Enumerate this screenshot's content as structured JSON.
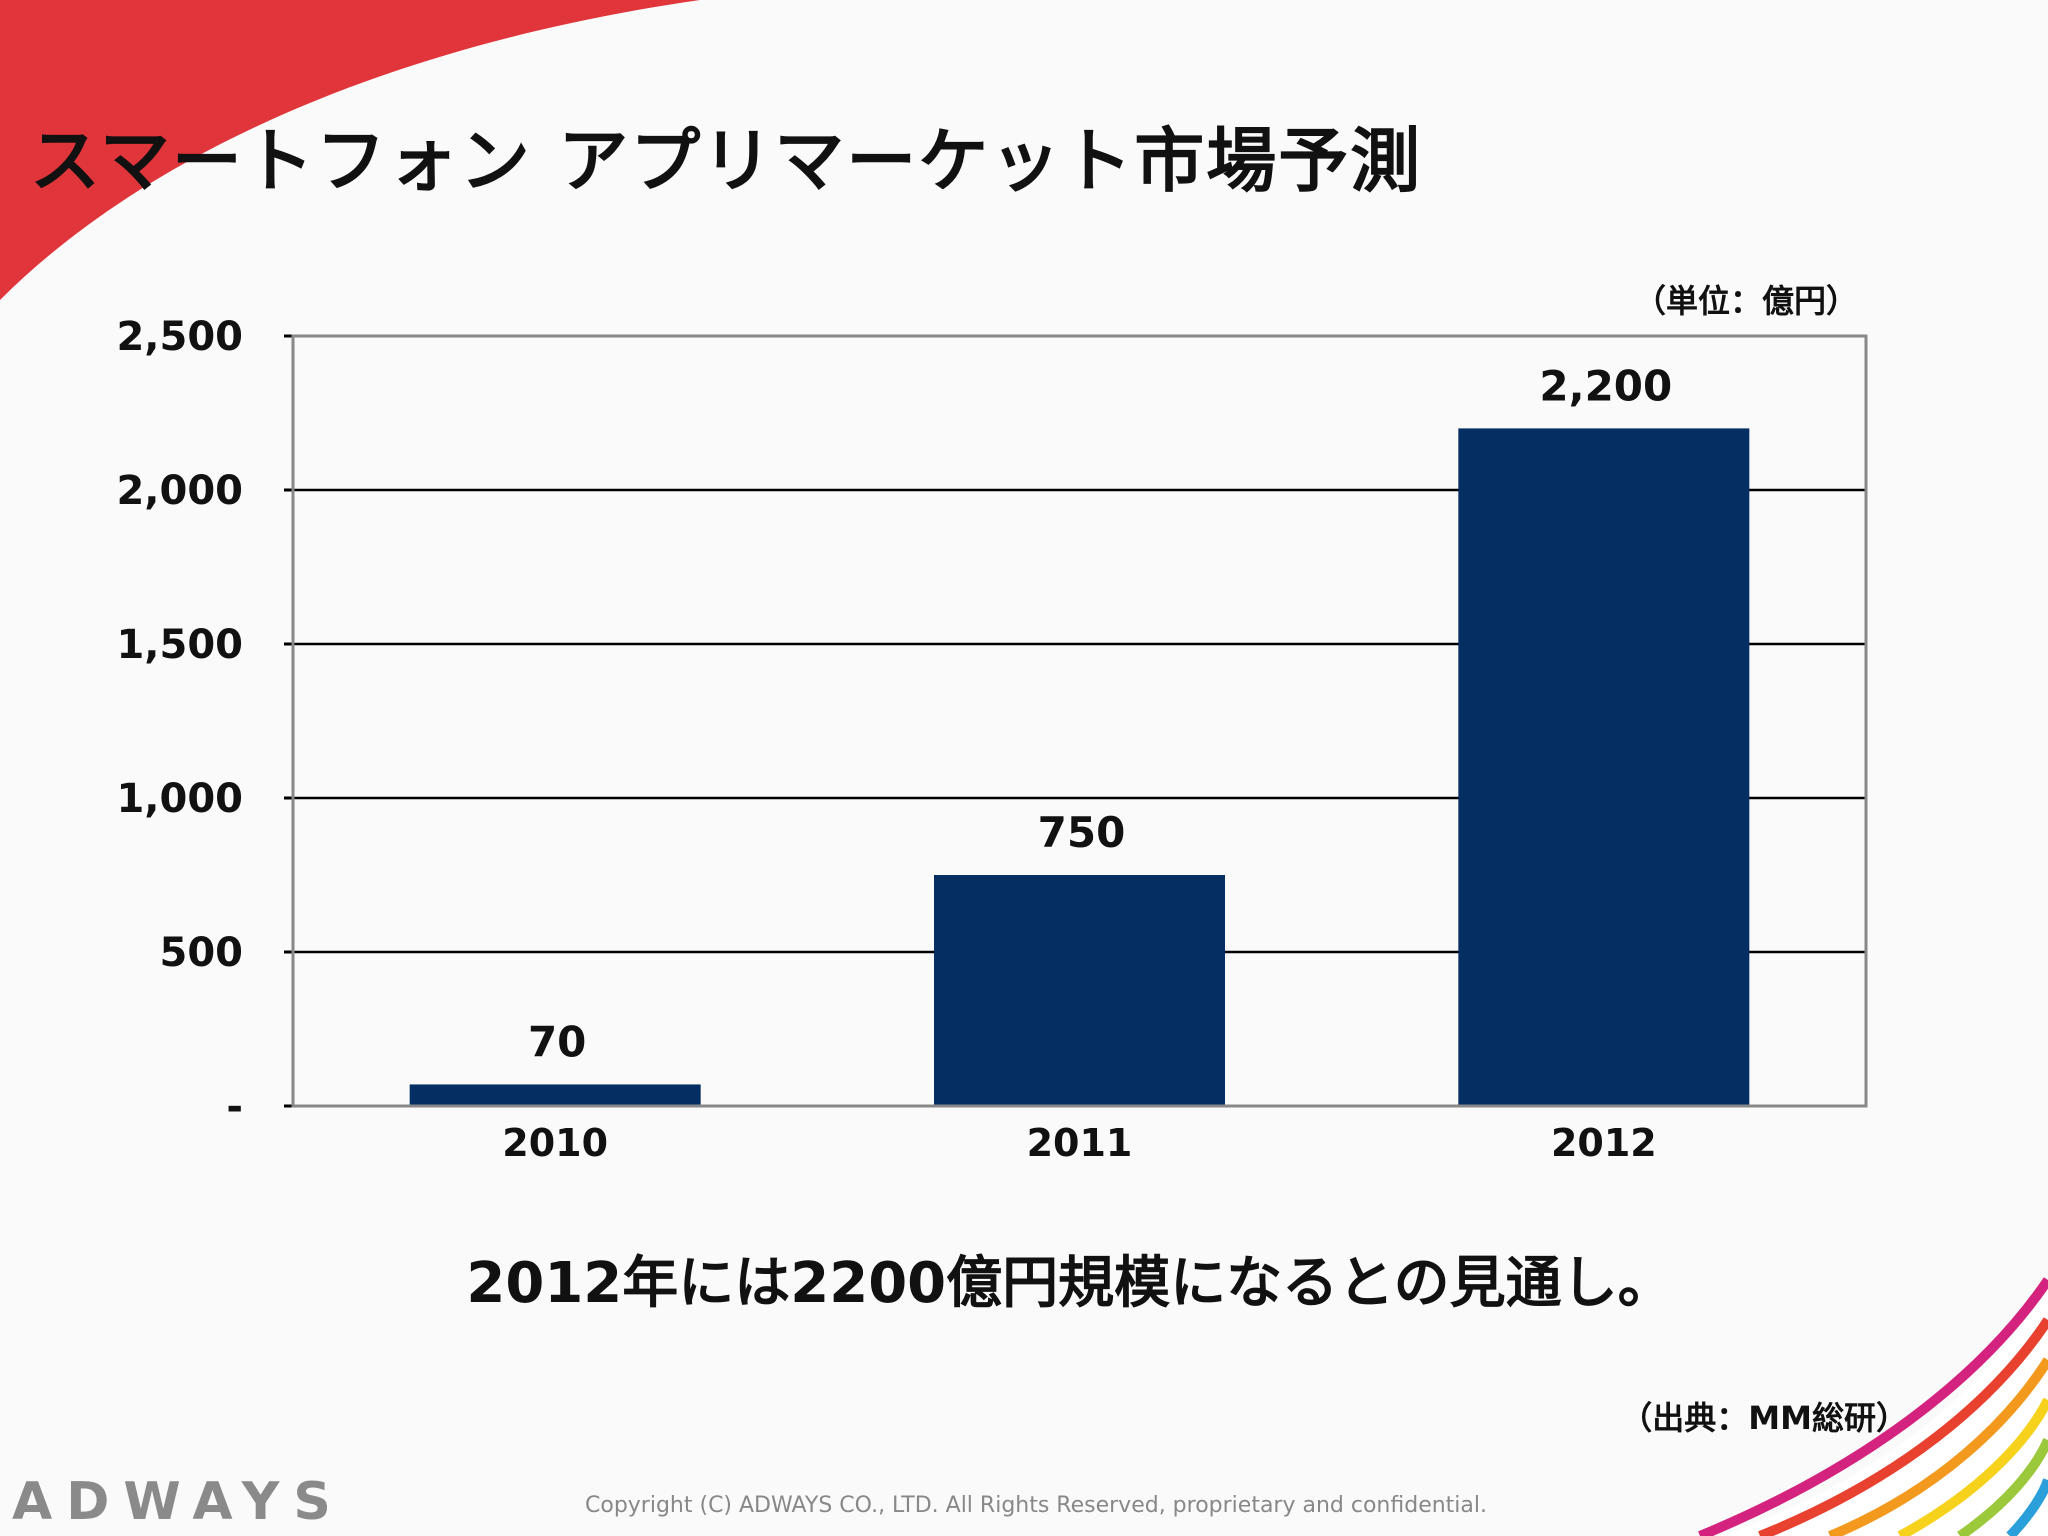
{
  "slide": {
    "title": "スマートフォン アプリマーケット市場予測",
    "unit_note": "（単位：億円）",
    "caption": "2012年には2200億円規模になるとの見通し。",
    "source": "（出典：MM総研）",
    "logo": "ADWAYS",
    "copyright": "Copyright (C) ADWAYS CO., LTD. All Rights Reserved, proprietary and confidential."
  },
  "colors": {
    "bar": "#052f63",
    "accent_red": "#e0353a",
    "grid": "#000000",
    "frame": "#888888"
  },
  "chart_data": {
    "type": "bar",
    "categories": [
      "2010",
      "2011",
      "2012"
    ],
    "values": [
      70,
      750,
      2200
    ],
    "data_labels": [
      "70",
      "750",
      "2,200"
    ],
    "title": "",
    "xlabel": "",
    "ylabel": "",
    "ylim": [
      0,
      2500
    ],
    "yticks": [
      0,
      500,
      1000,
      1500,
      2000,
      2500
    ],
    "ytick_labels": [
      "-",
      "500",
      "1,000",
      "1,500",
      "2,000",
      "2,500"
    ],
    "grid": true,
    "legend": "none"
  }
}
